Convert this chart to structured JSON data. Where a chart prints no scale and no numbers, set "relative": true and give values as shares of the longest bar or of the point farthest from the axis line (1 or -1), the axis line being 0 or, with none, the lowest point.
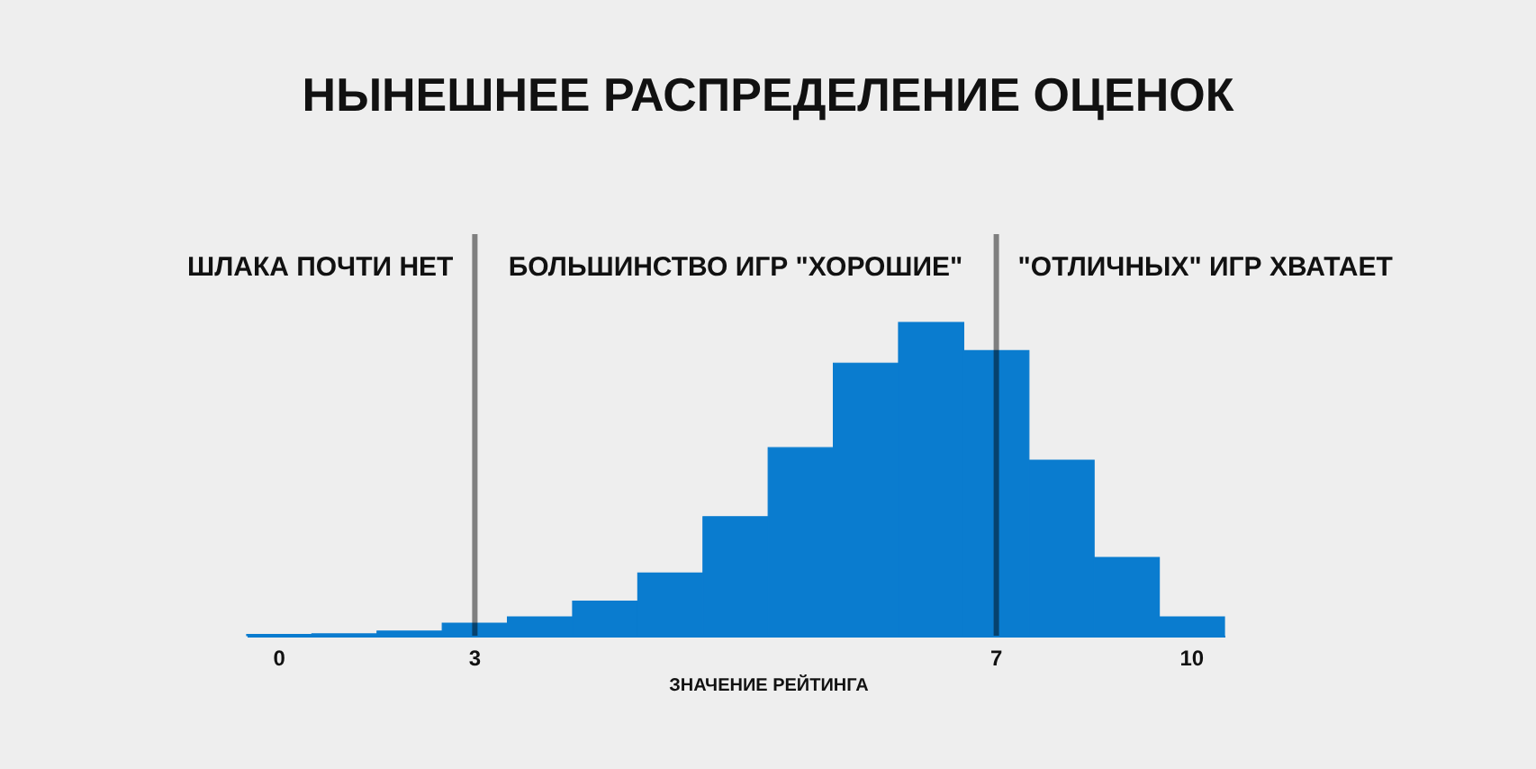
{
  "chart_data": {
    "type": "bar",
    "title": "НЫНЕШНЕЕ РАСПРЕДЕЛЕНИЕ ОЦЕНОК",
    "xlabel": "ЗНАЧЕНИЕ РЕЙТИНГА",
    "categories": [
      "0",
      null,
      null,
      "3",
      null,
      null,
      null,
      null,
      null,
      null,
      null,
      "7",
      null,
      null,
      "10"
    ],
    "values": [
      0.004,
      0.006,
      0.015,
      0.04,
      0.06,
      0.11,
      0.2,
      0.38,
      0.6,
      0.87,
      1,
      0.91,
      0.56,
      0.25,
      0.06
    ],
    "color": "#0a7ccf",
    "relative": true,
    "ref_lines": [
      {
        "axis": "x",
        "value": "3",
        "color": "#888888"
      },
      {
        "axis": "x",
        "value": "7",
        "color": "#888888"
      }
    ],
    "annotations": [
      "ШЛАКА ПОЧТИ НЕТ",
      "БОЛЬШИНСТВО ИГР \"ХОРОШИЕ\"",
      "\"ОТЛИЧНЫХ\" ИГР ХВАТАЕТ"
    ]
  }
}
